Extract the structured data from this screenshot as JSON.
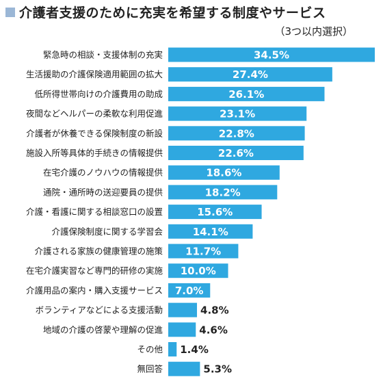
{
  "chart_data": {
    "type": "bar",
    "orientation": "horizontal",
    "title": "介護者支援のために充実を希望する制度やサービス",
    "subtitle": "（3つ以内選択）",
    "categories": [
      "緊急時の相談・支援体制の充実",
      "生活援助の介護保険適用範囲の拡大",
      "低所得世帯向けの介護費用の助成",
      "夜間などヘルパーの柔軟な利用促進",
      "介護者が休養できる保険制度の新設",
      "施設入所等具体的手続きの情報提供",
      "在宅介護のノウハウの情報提供",
      "通院・通所時の送迎要員の提供",
      "介護・看護に関する相談窓口の設置",
      "介護保険制度に関する学習会",
      "介護される家族の健康管理の施策",
      "在宅介護実習など専門的研修の実施",
      "介護用品の案内・購入支援サービス",
      "ボランティアなどによる支援活動",
      "地域の介護の啓蒙や理解の促進",
      "その他",
      "無回答"
    ],
    "values": [
      34.5,
      27.4,
      26.1,
      23.1,
      22.8,
      22.6,
      18.6,
      18.2,
      15.6,
      14.1,
      11.7,
      10.0,
      7.0,
      4.8,
      4.6,
      1.4,
      5.3
    ],
    "labels": [
      "34.5%",
      "27.4%",
      "26.1%",
      "23.1%",
      "22.8%",
      "22.6%",
      "18.6%",
      "18.2%",
      "15.6%",
      "14.1%",
      "11.7%",
      "10.0%",
      "7.0%",
      "4.8%",
      "4.6%",
      "1.4%",
      "5.3%"
    ],
    "unit": "%",
    "xlim": [
      0,
      34.5
    ],
    "colors": {
      "bar": "#2fa8e0",
      "label_inside": "#ffffff",
      "label_outside": "#222222",
      "title_mark": "#9bb7d6"
    }
  }
}
